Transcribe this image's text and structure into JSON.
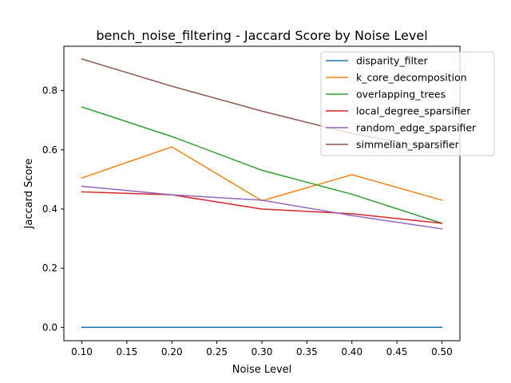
{
  "chart_data": {
    "type": "line",
    "title": "bench_noise_filtering - Jaccard Score by Noise Level",
    "xlabel": "Noise Level",
    "ylabel": "Jaccard Score",
    "x": [
      0.1,
      0.2,
      0.3,
      0.4,
      0.5
    ],
    "xlim": [
      0.08,
      0.52
    ],
    "ylim": [
      -0.045,
      0.95
    ],
    "xticks": [
      0.1,
      0.15,
      0.2,
      0.25,
      0.3,
      0.35,
      0.4,
      0.45,
      0.5
    ],
    "xtick_labels": [
      "0.10",
      "0.15",
      "0.20",
      "0.25",
      "0.30",
      "0.35",
      "0.40",
      "0.45",
      "0.50"
    ],
    "yticks": [
      0.0,
      0.2,
      0.4,
      0.6,
      0.8
    ],
    "ytick_labels": [
      "0.0",
      "0.2",
      "0.4",
      "0.6",
      "0.8"
    ],
    "grid": false,
    "legend_position": "top-right",
    "series": [
      {
        "name": "disparity_filter",
        "color": "#1f77b4",
        "values": [
          0.0,
          0.0,
          0.0,
          0.0,
          0.0
        ]
      },
      {
        "name": "k_core_decomposition",
        "color": "#ff7f0e",
        "values": [
          0.505,
          0.61,
          0.428,
          0.516,
          0.43
        ]
      },
      {
        "name": "overlapping_trees",
        "color": "#2ca02c",
        "values": [
          0.745,
          0.645,
          0.531,
          0.45,
          0.352
        ]
      },
      {
        "name": "local_degree_sparsifier",
        "color": "#d62728",
        "values": [
          0.458,
          0.448,
          0.4,
          0.384,
          0.352
        ]
      },
      {
        "name": "random_edge_sparsifier",
        "color": "#9467bd",
        "values": [
          0.477,
          0.448,
          0.43,
          0.378,
          0.333
        ]
      },
      {
        "name": "simmelian_sparsifier",
        "color": "#8c564b",
        "values": [
          0.907,
          0.815,
          0.731,
          0.655,
          0.6
        ]
      }
    ]
  }
}
